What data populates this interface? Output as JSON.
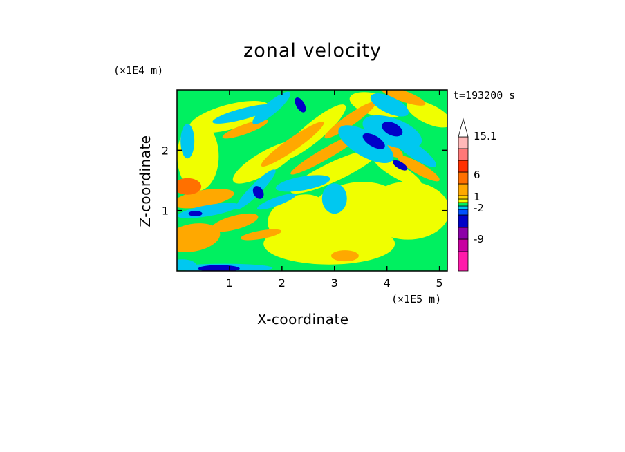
{
  "chart_data": {
    "type": "heatmap",
    "title": "zonal velocity",
    "xlabel": "X-coordinate",
    "ylabel": "Z-coordinate",
    "x_unit": "(×1E5 m)",
    "y_unit": "(×1E4 m)",
    "time_label": "t=193200 s",
    "xlim": [
      0,
      5.15
    ],
    "ylim": [
      0,
      3.0
    ],
    "x_ticks": [
      1,
      2,
      3,
      4,
      5
    ],
    "y_ticks": [
      1,
      2
    ],
    "colorbar": {
      "labeled_levels": [
        "15.1",
        "6",
        "1",
        "-2",
        "-9"
      ],
      "colors": [
        "#ff1aaa",
        "#c800a0",
        "#8c00a8",
        "#0000c8",
        "#0050ff",
        "#00c8f0",
        "#00f060",
        "#f0ff00",
        "#ffd200",
        "#ffa800",
        "#ff7000",
        "#ff3000",
        "#ff7878",
        "#ffb8b8",
        "#ffffff"
      ]
    },
    "grid": false
  },
  "colors": {
    "neg_strong": "#0000c8",
    "neg": "#00c8f0",
    "background": "#00f060",
    "near_zero": "#f0ff00",
    "pos": "#ffa800",
    "pos_strong": "#ff7000"
  }
}
